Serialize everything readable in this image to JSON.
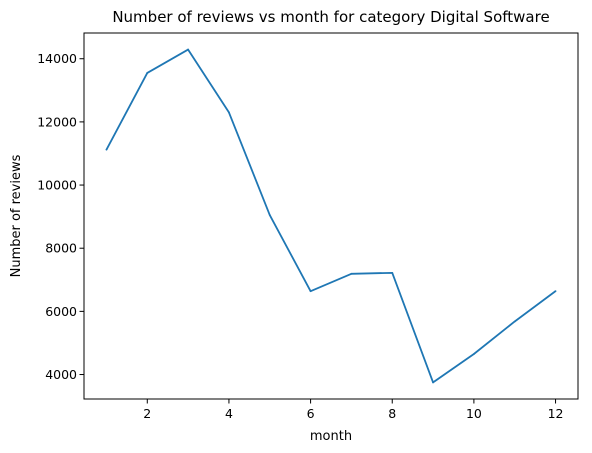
{
  "chart_data": {
    "type": "line",
    "title": "Number of reviews vs month for category Digital Software",
    "xlabel": "month",
    "ylabel": "Number of reviews",
    "x": [
      1,
      2,
      3,
      4,
      5,
      6,
      7,
      8,
      9,
      10,
      11,
      12
    ],
    "series": [
      {
        "values": [
          11120,
          13550,
          14290,
          12300,
          9050,
          6640,
          7190,
          7220,
          3750,
          4650,
          5680,
          6640
        ],
        "color": "#1f77b4"
      }
    ],
    "xlim": [
      0.45,
      12.55
    ],
    "ylim": [
      3225,
      14815
    ],
    "xticks": [
      2,
      4,
      6,
      8,
      10,
      12
    ],
    "yticks": [
      4000,
      6000,
      8000,
      10000,
      12000,
      14000
    ],
    "grid": false,
    "legend": "none"
  }
}
